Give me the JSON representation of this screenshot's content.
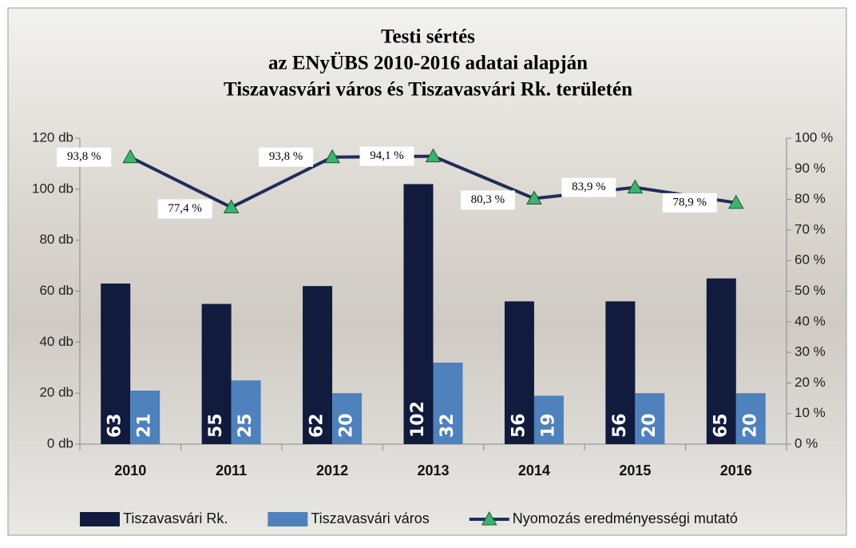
{
  "chart_data": {
    "type": "bar",
    "title": [
      "Testi sértés",
      "az ENyÜBS  2010-2016 adatai alapján",
      "Tiszavasvári város és Tiszavasvári Rk. területén"
    ],
    "categories": [
      "2010",
      "2011",
      "2012",
      "2013",
      "2014",
      "2015",
      "2016"
    ],
    "series": [
      {
        "name": "Tiszavasvári Rk.",
        "color": "#101b3d",
        "values": [
          63,
          55,
          62,
          102,
          56,
          56,
          65
        ]
      },
      {
        "name": "Tiszavasvári város",
        "color": "#4f81bd",
        "values": [
          21,
          25,
          20,
          32,
          19,
          20,
          20
        ]
      },
      {
        "name": "Nyomozás eredményességi mutató",
        "type": "line",
        "axis": "y2",
        "color": "#1f2d5a",
        "marker_color": "#3cb371",
        "values": [
          93.8,
          77.4,
          93.8,
          94.1,
          80.3,
          83.9,
          78.9
        ],
        "value_labels": [
          "93,8 %",
          "77,4 %",
          "93,8 %",
          "94,1 %",
          "80,3 %",
          "83,9 %",
          "78,9 %"
        ]
      }
    ],
    "ylim": [
      0,
      120
    ],
    "yticks": [
      {
        "value": 0,
        "label": "0 db"
      },
      {
        "value": 20,
        "label": "20 db"
      },
      {
        "value": 40,
        "label": "40 db"
      },
      {
        "value": 60,
        "label": "60 db"
      },
      {
        "value": 80,
        "label": "80 db"
      },
      {
        "value": 100,
        "label": "100 db"
      },
      {
        "value": 120,
        "label": "120 db"
      }
    ],
    "y2lim": [
      0,
      100
    ],
    "y2ticks": [
      {
        "value": 0,
        "label": "0 %"
      },
      {
        "value": 10,
        "label": "10 %"
      },
      {
        "value": 20,
        "label": "20 %"
      },
      {
        "value": 30,
        "label": "30 %"
      },
      {
        "value": 40,
        "label": "40 %"
      },
      {
        "value": 50,
        "label": "50 %"
      },
      {
        "value": 60,
        "label": "60 %"
      },
      {
        "value": 70,
        "label": "70 %"
      },
      {
        "value": 80,
        "label": "80 %"
      },
      {
        "value": 90,
        "label": "90 %"
      },
      {
        "value": 100,
        "label": "100 %"
      }
    ],
    "legend": "bottom"
  }
}
